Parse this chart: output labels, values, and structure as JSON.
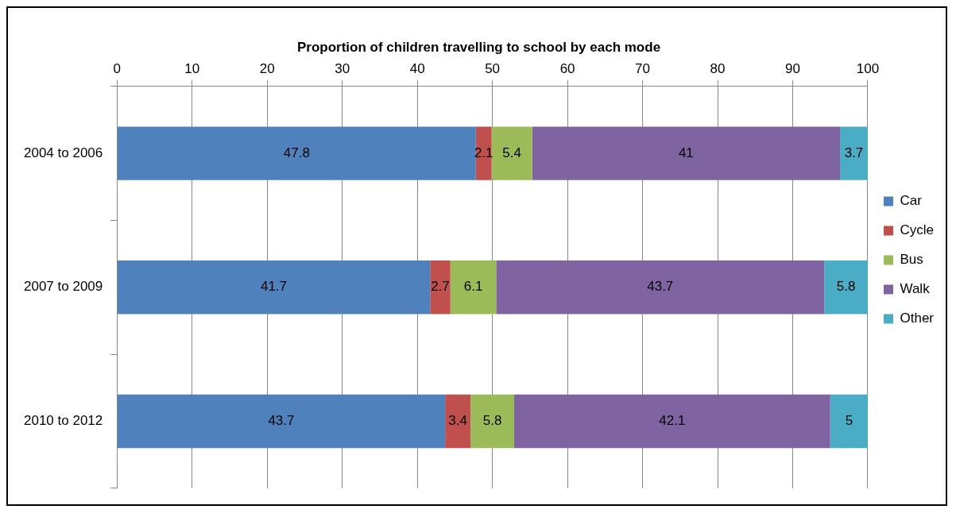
{
  "chart_data": {
    "type": "bar",
    "orientation": "horizontal",
    "stacked": true,
    "title": "Proportion of children travelling to school by each mode",
    "categories": [
      "2004 to 2006",
      "2007 to 2009",
      "2010 to 2012"
    ],
    "series": [
      {
        "name": "Car",
        "color": "#4f81bd",
        "values": [
          47.8,
          41.7,
          43.7
        ]
      },
      {
        "name": "Cycle",
        "color": "#c0504d",
        "values": [
          2.1,
          2.7,
          3.4
        ]
      },
      {
        "name": "Bus",
        "color": "#9bbb59",
        "values": [
          5.4,
          6.1,
          5.8
        ]
      },
      {
        "name": "Walk",
        "color": "#8064a2",
        "values": [
          41,
          43.7,
          42.1
        ]
      },
      {
        "name": "Other",
        "color": "#4bacc6",
        "values": [
          3.7,
          5.8,
          5
        ]
      }
    ],
    "xlim": [
      0,
      100
    ],
    "xticks": [
      0,
      10,
      20,
      30,
      40,
      50,
      60,
      70,
      80,
      90,
      100
    ],
    "grid": "x",
    "legend": "right",
    "data_labels": true
  }
}
